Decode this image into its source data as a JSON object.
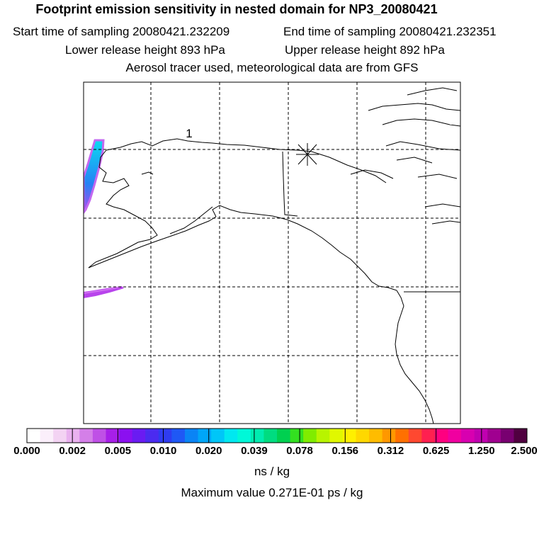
{
  "header": {
    "title": "Footprint emission sensitivity in nested domain for NP3_20080421",
    "start_time": "Start time of sampling 20080421.232209",
    "end_time": "End time of sampling 20080421.232351",
    "lower_release": "Lower release height  893 hPa",
    "upper_release": "Upper release height  892 hPa",
    "tracer_note": "Aerosol tracer used, meteorological data are from GFS"
  },
  "map": {
    "release_marker_label": "1",
    "grid": true,
    "release_marker": "asterisk-star"
  },
  "colorbar": {
    "ticks": [
      "0.000",
      "0.002",
      "0.005",
      "0.010",
      "0.020",
      "0.039",
      "0.078",
      "0.156",
      "0.312",
      "0.625",
      "1.250",
      "2.500"
    ],
    "colors": [
      "#ffffff",
      "#fbeffb",
      "#f3d3f3",
      "#e9b1ef",
      "#d47fe8",
      "#bf50e6",
      "#a71fe8",
      "#8b10f0",
      "#6a1bf2",
      "#4b2bf0",
      "#2f3cf0",
      "#1f58f5",
      "#0a84f5",
      "#00a6f8",
      "#00c6f8",
      "#00e8f0",
      "#00f8d8",
      "#00ecb0",
      "#00dc80",
      "#00d050",
      "#33e020",
      "#80ec00",
      "#b8f400",
      "#e0f800",
      "#fff000",
      "#ffd800",
      "#ffbc00",
      "#ff9800",
      "#ff7000",
      "#ff4830",
      "#ff2050",
      "#ff0080",
      "#f000a0",
      "#d800b0",
      "#c000b0",
      "#a00090",
      "#780070",
      "#500040"
    ],
    "unit": "ns / kg"
  },
  "footer": {
    "max_value": "Maximum value  0.271E-01 ps / kg"
  }
}
